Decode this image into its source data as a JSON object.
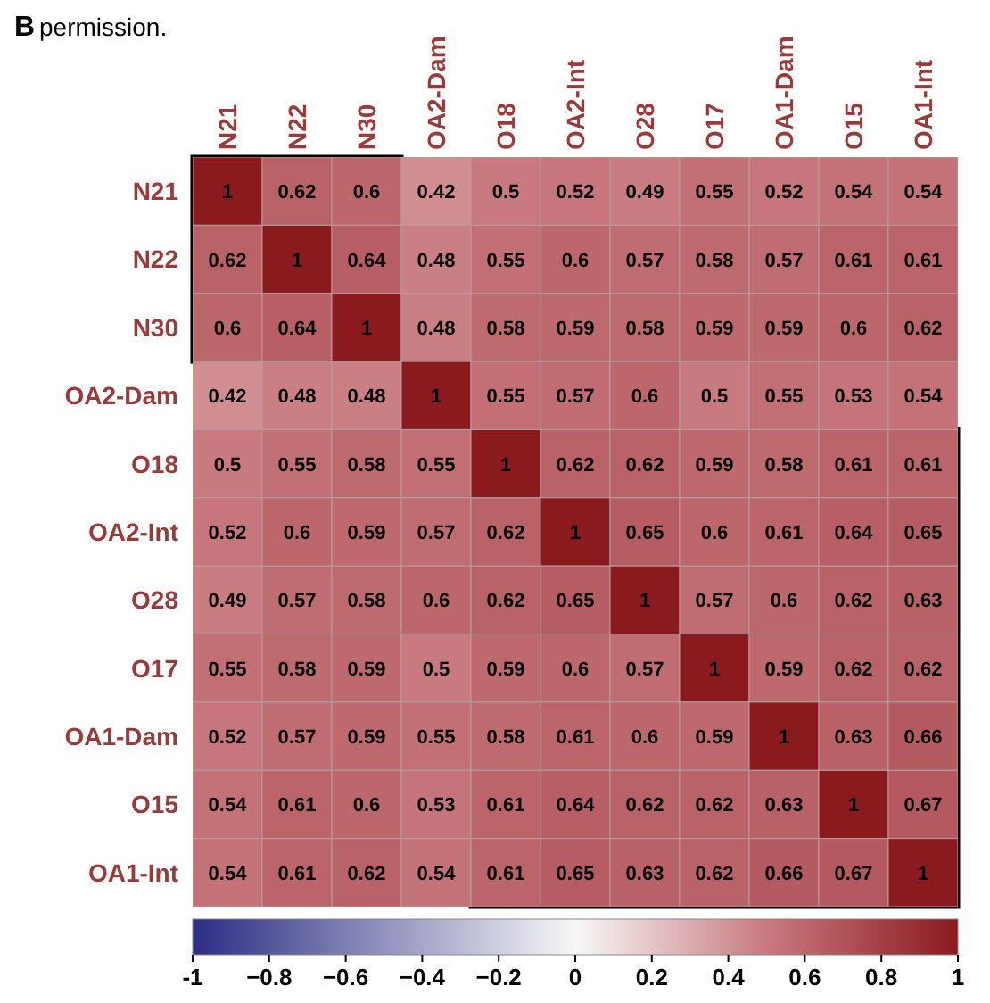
{
  "chart_data": {
    "type": "heatmap",
    "annotations": [
      "B",
      "permission."
    ],
    "categories": [
      "N21",
      "N22",
      "N30",
      "OA2-Dam",
      "O18",
      "OA2-Int",
      "O28",
      "O17",
      "OA1-Dam",
      "O15",
      "OA1-Int"
    ],
    "y_categories": [
      "N21",
      "N22",
      "N30",
      "OA2-Dam",
      "O18",
      "OA2-Int",
      "O28",
      "O17",
      "OA1-Dam",
      "O15",
      "OA1-Int"
    ],
    "cells": [
      [
        1,
        0.62,
        0.6,
        0.42,
        0.5,
        0.52,
        0.49,
        0.55,
        0.52,
        0.54,
        0.54
      ],
      [
        0.62,
        1,
        0.64,
        0.48,
        0.55,
        0.6,
        0.57,
        0.58,
        0.57,
        0.61,
        0.61
      ],
      [
        0.6,
        0.64,
        1,
        0.48,
        0.58,
        0.59,
        0.58,
        0.59,
        0.59,
        0.6,
        0.62
      ],
      [
        0.42,
        0.48,
        0.48,
        1,
        0.55,
        0.57,
        0.6,
        0.5,
        0.55,
        0.53,
        0.54
      ],
      [
        0.5,
        0.55,
        0.58,
        0.55,
        1,
        0.62,
        0.62,
        0.59,
        0.58,
        0.61,
        0.61
      ],
      [
        0.52,
        0.6,
        0.59,
        0.57,
        0.62,
        1,
        0.65,
        0.6,
        0.61,
        0.64,
        0.65
      ],
      [
        0.49,
        0.57,
        0.58,
        0.6,
        0.62,
        0.65,
        1,
        0.57,
        0.6,
        0.62,
        0.63
      ],
      [
        0.55,
        0.58,
        0.59,
        0.5,
        0.59,
        0.6,
        0.57,
        1,
        0.59,
        0.62,
        0.62
      ],
      [
        0.52,
        0.57,
        0.59,
        0.55,
        0.58,
        0.61,
        0.6,
        0.59,
        1,
        0.63,
        0.66
      ],
      [
        0.54,
        0.61,
        0.6,
        0.53,
        0.61,
        0.64,
        0.62,
        0.62,
        0.63,
        1,
        0.67
      ],
      [
        0.54,
        0.61,
        0.62,
        0.54,
        0.61,
        0.65,
        0.63,
        0.62,
        0.66,
        0.67,
        1
      ]
    ],
    "data_labels": true,
    "clim": [
      -1,
      1
    ],
    "cticks": [
      -1,
      {
        "value": -0.8,
        "label": "−0.8"
      },
      {
        "value": -0.6,
        "label": "−0.6"
      },
      {
        "value": -0.4,
        "label": "−0.4"
      },
      {
        "value": -0.2,
        "label": "−0.2"
      },
      0,
      0.2,
      0.4,
      0.6,
      0.8,
      1
    ]
  }
}
